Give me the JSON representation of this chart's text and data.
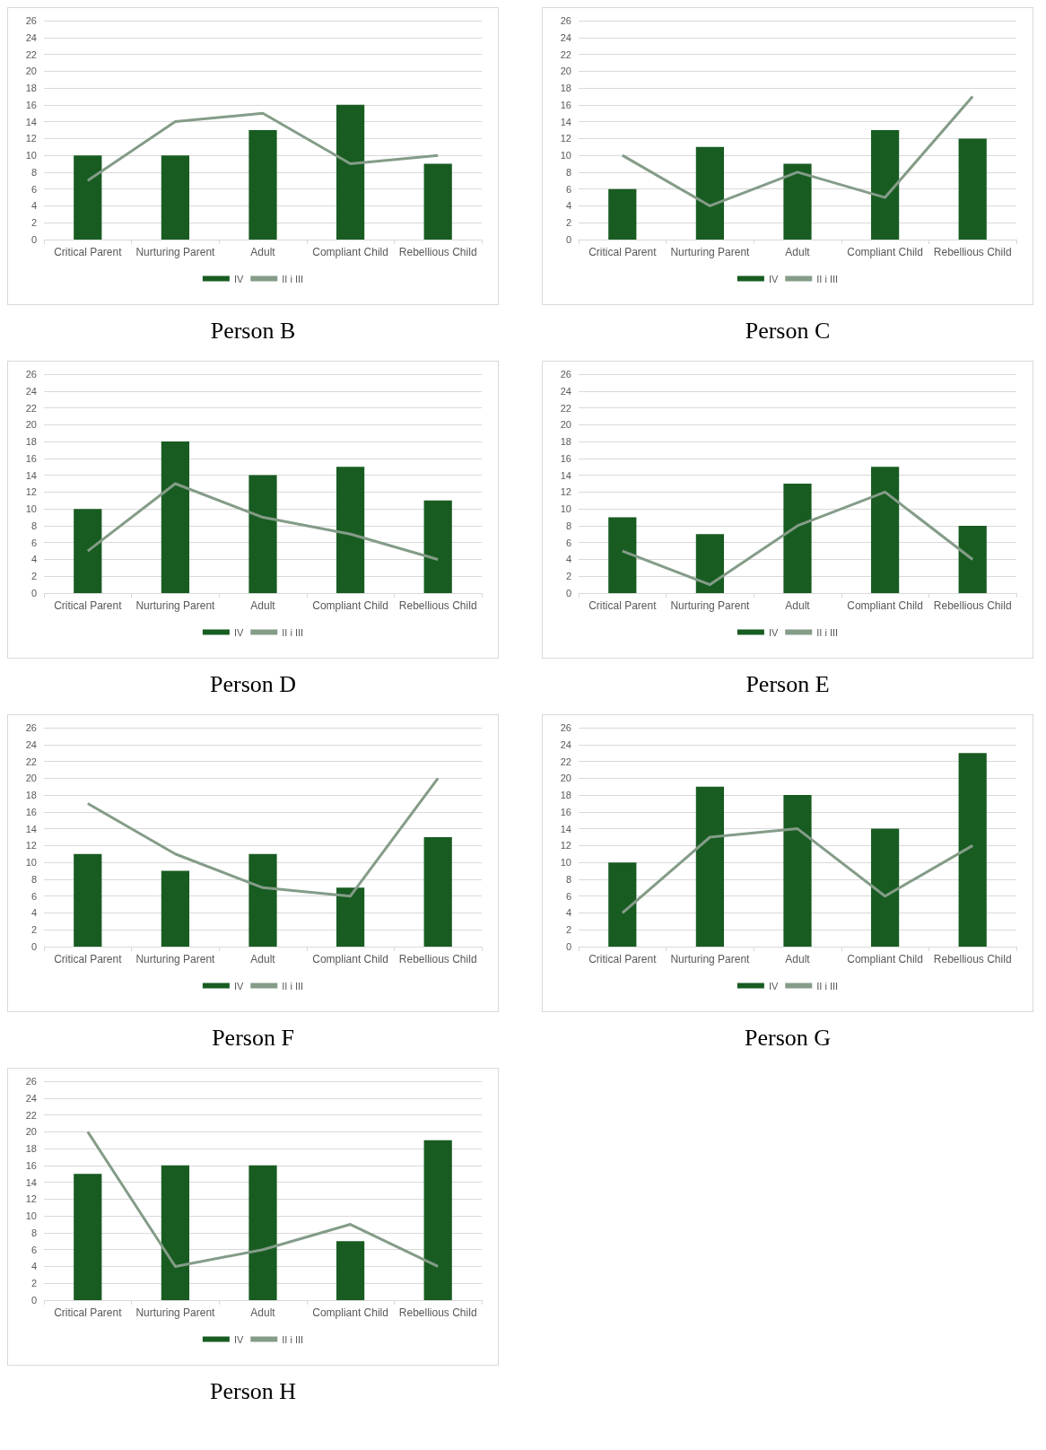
{
  "chart_data": [
    {
      "type": "bar",
      "title": "Person B",
      "categories": [
        "Critical Parent",
        "Nurturing Parent",
        "Adult",
        "Compliant Child",
        "Rebellious Child"
      ],
      "series": [
        {
          "name": "IV",
          "color": "#185c22",
          "values": [
            10,
            10,
            13,
            16,
            9
          ]
        },
        {
          "name": "II i III",
          "type": "line",
          "color": "#849c88",
          "values": [
            7,
            14,
            15,
            9,
            10
          ]
        }
      ],
      "ylim": [
        0,
        26
      ],
      "yticks": [
        0,
        2,
        4,
        6,
        8,
        10,
        12,
        14,
        16,
        18,
        20,
        22,
        24,
        26
      ],
      "grid": "y",
      "legend": "bottom",
      "marker": "none"
    },
    {
      "type": "bar",
      "title": "Person C",
      "categories": [
        "Critical Parent",
        "Nurturing Parent",
        "Adult",
        "Compliant Child",
        "Rebellious Child"
      ],
      "series": [
        {
          "name": "IV",
          "color": "#185c22",
          "values": [
            6,
            11,
            9,
            13,
            12
          ]
        },
        {
          "name": "II i III",
          "type": "line",
          "color": "#849c88",
          "values": [
            10,
            4,
            8,
            5,
            17
          ]
        }
      ],
      "ylim": [
        0,
        26
      ],
      "yticks": [
        0,
        2,
        4,
        6,
        8,
        10,
        12,
        14,
        16,
        18,
        20,
        22,
        24,
        26
      ],
      "grid": "y",
      "legend": "bottom",
      "marker": "none"
    },
    {
      "type": "bar",
      "title": "Person D",
      "categories": [
        "Critical Parent",
        "Nurturing Parent",
        "Adult",
        "Compliant Child",
        "Rebellious Child"
      ],
      "series": [
        {
          "name": "IV",
          "color": "#185c22",
          "values": [
            10,
            18,
            14,
            15,
            11
          ]
        },
        {
          "name": "II i III",
          "type": "line",
          "color": "#849c88",
          "values": [
            5,
            13,
            9,
            7,
            4
          ]
        }
      ],
      "ylim": [
        0,
        26
      ],
      "yticks": [
        0,
        2,
        4,
        6,
        8,
        10,
        12,
        14,
        16,
        18,
        20,
        22,
        24,
        26
      ],
      "grid": "y",
      "legend": "bottom",
      "marker": "none"
    },
    {
      "type": "bar",
      "title": "Person E",
      "categories": [
        "Critical Parent",
        "Nurturing Parent",
        "Adult",
        "Compliant Child",
        "Rebellious Child"
      ],
      "series": [
        {
          "name": "IV",
          "color": "#185c22",
          "values": [
            9,
            7,
            13,
            15,
            8
          ]
        },
        {
          "name": "II i III",
          "type": "line",
          "color": "#849c88",
          "values": [
            5,
            1,
            8,
            12,
            4
          ]
        }
      ],
      "ylim": [
        0,
        26
      ],
      "yticks": [
        0,
        2,
        4,
        6,
        8,
        10,
        12,
        14,
        16,
        18,
        20,
        22,
        24,
        26
      ],
      "grid": "y",
      "legend": "bottom",
      "marker": "none"
    },
    {
      "type": "bar",
      "title": "Person F",
      "categories": [
        "Critical Parent",
        "Nurturing Parent",
        "Adult",
        "Compliant Child",
        "Rebellious Child"
      ],
      "series": [
        {
          "name": "IV",
          "color": "#185c22",
          "values": [
            11,
            9,
            11,
            7,
            13
          ]
        },
        {
          "name": "II i III",
          "type": "line",
          "color": "#849c88",
          "values": [
            17,
            11,
            7,
            6,
            20
          ]
        }
      ],
      "ylim": [
        0,
        26
      ],
      "yticks": [
        0,
        2,
        4,
        6,
        8,
        10,
        12,
        14,
        16,
        18,
        20,
        22,
        24,
        26
      ],
      "grid": "y",
      "legend": "bottom",
      "marker": "none"
    },
    {
      "type": "bar",
      "title": "Person G",
      "categories": [
        "Critical Parent",
        "Nurturing Parent",
        "Adult",
        "Compliant Child",
        "Rebellious Child"
      ],
      "series": [
        {
          "name": "IV",
          "color": "#185c22",
          "values": [
            10,
            19,
            18,
            14,
            23
          ]
        },
        {
          "name": "II i III",
          "type": "line",
          "color": "#849c88",
          "values": [
            4,
            13,
            14,
            6,
            12
          ]
        }
      ],
      "ylim": [
        0,
        26
      ],
      "yticks": [
        0,
        2,
        4,
        6,
        8,
        10,
        12,
        14,
        16,
        18,
        20,
        22,
        24,
        26
      ],
      "grid": "y",
      "legend": "bottom",
      "marker": "none"
    },
    {
      "type": "bar",
      "title": "Person H",
      "categories": [
        "Critical Parent",
        "Nurturing Parent",
        "Adult",
        "Compliant Child",
        "Rebellious Child"
      ],
      "series": [
        {
          "name": "IV",
          "color": "#185c22",
          "values": [
            15,
            16,
            16,
            7,
            19
          ]
        },
        {
          "name": "II i III",
          "type": "line",
          "color": "#849c88",
          "values": [
            20,
            4,
            6,
            9,
            4
          ]
        }
      ],
      "ylim": [
        0,
        26
      ],
      "yticks": [
        0,
        2,
        4,
        6,
        8,
        10,
        12,
        14,
        16,
        18,
        20,
        22,
        24,
        26
      ],
      "grid": "y",
      "legend": "bottom",
      "marker": "none"
    }
  ]
}
